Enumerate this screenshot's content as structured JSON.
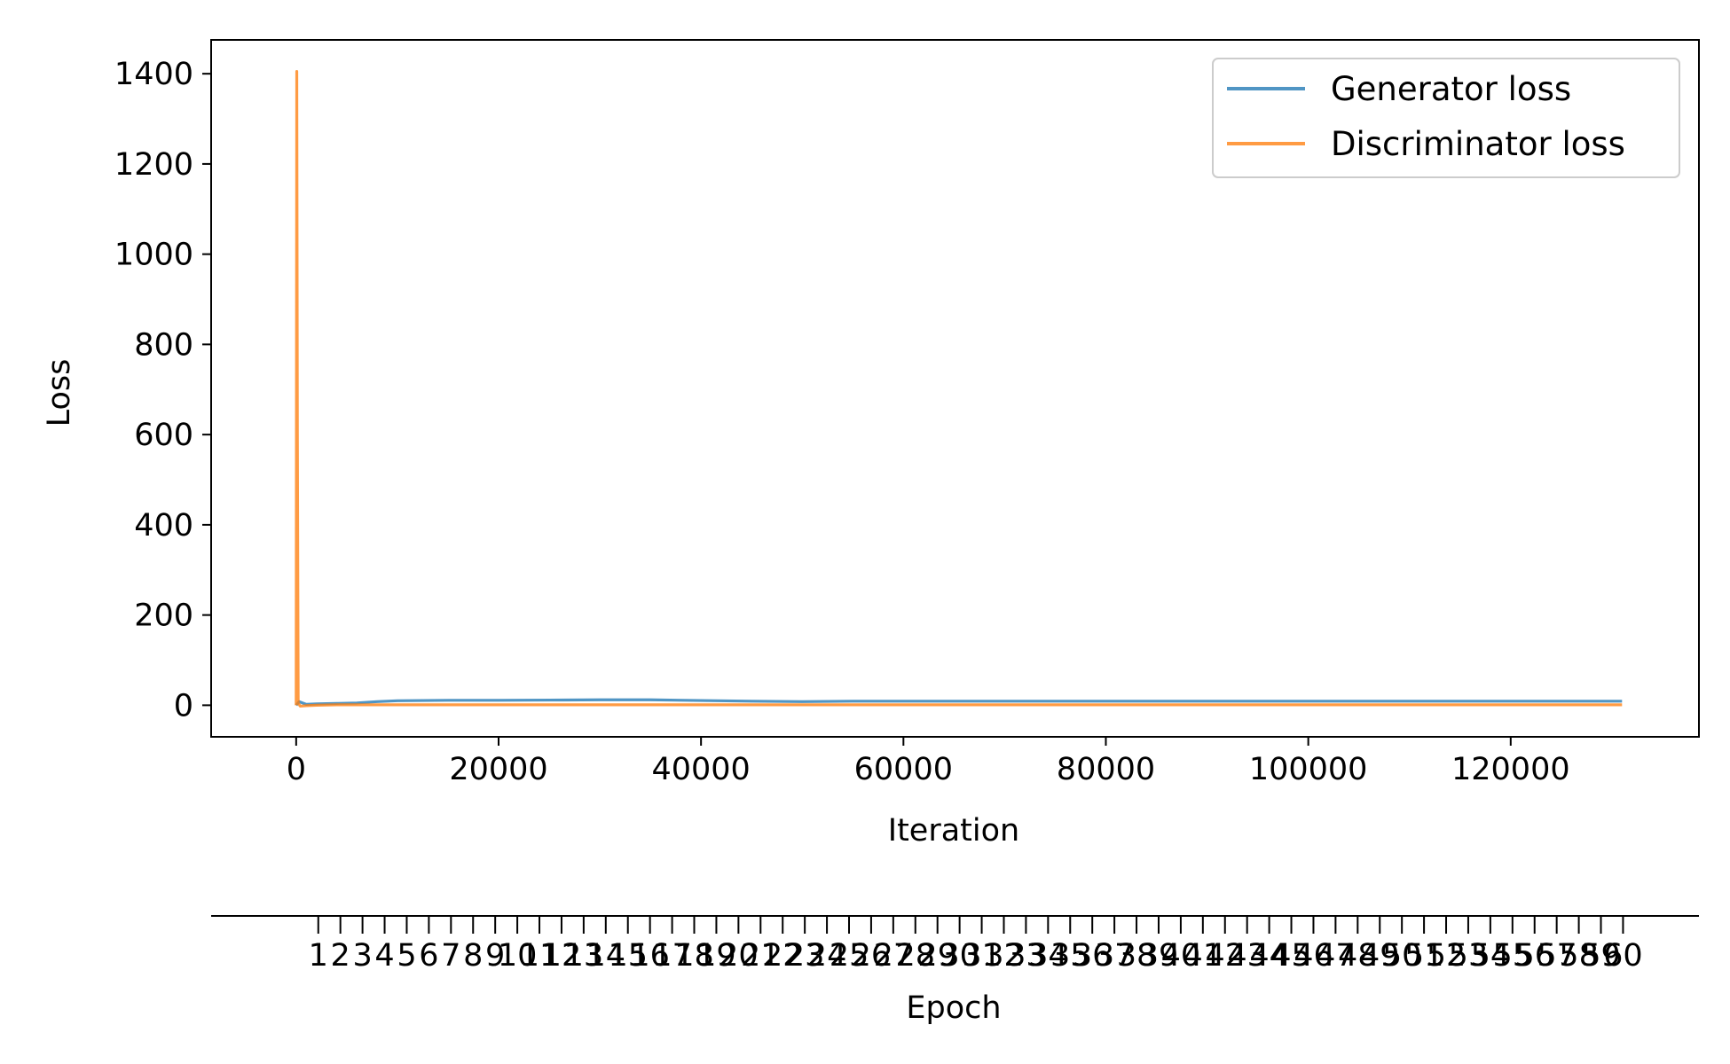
{
  "chart_data": {
    "type": "line",
    "xlabel": "Iteration",
    "ylabel": "Loss",
    "xlim": [
      -8400,
      138600
    ],
    "ylim": [
      -70,
      1475
    ],
    "x_ticks": [
      0,
      20000,
      40000,
      60000,
      80000,
      100000,
      120000
    ],
    "x_tick_labels": [
      "0",
      "20000",
      "40000",
      "60000",
      "80000",
      "100000",
      "120000"
    ],
    "y_ticks": [
      0,
      200,
      400,
      600,
      800,
      1000,
      1200,
      1400
    ],
    "y_tick_labels": [
      "0",
      "200",
      "400",
      "600",
      "800",
      "1000",
      "1200",
      "1400"
    ],
    "legend_position": "upper-right",
    "series": [
      {
        "name": "Generator loss",
        "color": "#1f77b4",
        "x": [
          0,
          300,
          1000,
          2000,
          4000,
          6000,
          8000,
          10000,
          15000,
          20000,
          25000,
          30000,
          35000,
          40000,
          45000,
          50000,
          55000,
          60000,
          70000,
          80000,
          90000,
          100000,
          110000,
          120000,
          131000
        ],
        "values": [
          0,
          8,
          2,
          3,
          4,
          5,
          8,
          10,
          11,
          11,
          11.5,
          12,
          12,
          10.5,
          9,
          8,
          9,
          9,
          9,
          9,
          9,
          9,
          9,
          9,
          9
        ]
      },
      {
        "name": "Discriminator loss",
        "color": "#ff7f0e",
        "x": [
          0,
          60,
          120,
          200,
          400,
          1000,
          2000,
          4000,
          10000,
          20000,
          40000,
          60000,
          80000,
          100000,
          120000,
          131000
        ],
        "values": [
          0,
          1405,
          600,
          5,
          -2,
          -1,
          0,
          1,
          1,
          1,
          1,
          1,
          1,
          1,
          1,
          1
        ]
      }
    ],
    "secondary_axis": {
      "label": "Epoch",
      "position": "bottom",
      "tick_labels": [
        "1",
        "2",
        "3",
        "4",
        "5",
        "6",
        "7",
        "8",
        "9",
        "10",
        "11",
        "12",
        "13",
        "14",
        "15",
        "16",
        "17",
        "18",
        "19",
        "20",
        "21",
        "22",
        "23",
        "24",
        "25",
        "26",
        "27",
        "28",
        "29",
        "30",
        "31",
        "32",
        "33",
        "34",
        "35",
        "36",
        "37",
        "38",
        "39",
        "40",
        "41",
        "42",
        "43",
        "44",
        "45",
        "46",
        "47",
        "48",
        "49",
        "50",
        "51",
        "52",
        "53",
        "54",
        "55",
        "56",
        "57",
        "58",
        "59",
        "60"
      ],
      "iterations_per_epoch": 2185
    }
  }
}
